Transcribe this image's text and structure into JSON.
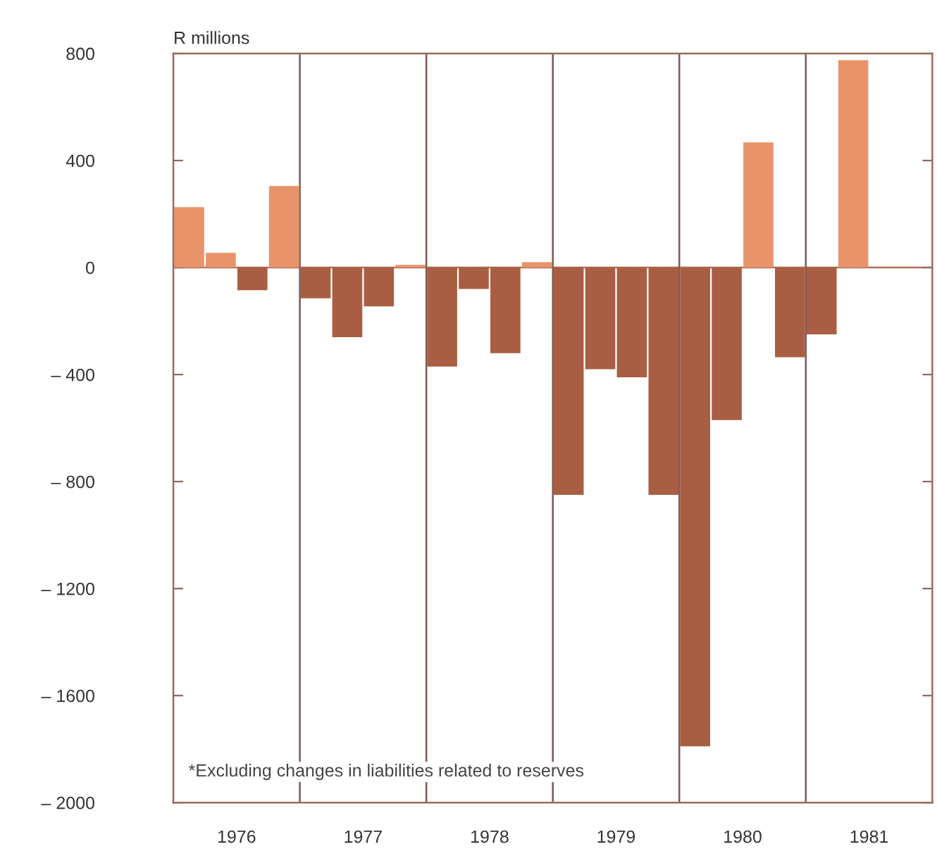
{
  "chart_data": {
    "type": "bar",
    "ylabel": "R millions",
    "x": [
      1976.125,
      1976.375,
      1976.625,
      1976.875,
      1977.125,
      1977.375,
      1977.625,
      1977.875,
      1978.125,
      1978.375,
      1978.625,
      1978.875,
      1979.125,
      1979.375,
      1979.625,
      1979.875,
      1980.125,
      1980.375,
      1980.625,
      1980.875,
      1981.125,
      1981.375
    ],
    "values": [
      226,
      55,
      -85,
      305,
      -115,
      -260,
      -145,
      10,
      -370,
      -80,
      -320,
      20,
      -850,
      -380,
      -410,
      -850,
      -1790,
      -570,
      468,
      -335,
      -250,
      775
    ],
    "colors": [
      "#e8936a",
      "#e8936a",
      "#a95e43",
      "#e8936a",
      "#a95e43",
      "#a95e43",
      "#a95e43",
      "#e8936a",
      "#a95e43",
      "#a95e43",
      "#a95e43",
      "#e8936a",
      "#a95e43",
      "#a95e43",
      "#a95e43",
      "#a95e43",
      "#a95e43",
      "#a95e43",
      "#e8936a",
      "#a95e43",
      "#a95e43",
      "#e8936a"
    ],
    "xlim": [
      1976,
      1982
    ],
    "xticks": [
      {
        "value": 1976.5,
        "label": "1976"
      },
      {
        "value": 1977.5,
        "label": "1977"
      },
      {
        "value": 1978.5,
        "label": "1978"
      },
      {
        "value": 1979.5,
        "label": "1979"
      },
      {
        "value": 1980.5,
        "label": "1980"
      },
      {
        "value": 1981.5,
        "label": "1981"
      }
    ],
    "ylim": [
      -2000,
      800
    ],
    "yticks": [
      800,
      400,
      0,
      {
        "value": -400,
        "label": "– 400"
      },
      {
        "value": -800,
        "label": "– 800"
      },
      {
        "value": -1200,
        "label": "– 1200"
      },
      {
        "value": -1600,
        "label": "– 1600"
      },
      {
        "value": -2000,
        "label": "– 2000"
      }
    ],
    "ref_lines": [
      {
        "axis": "y",
        "value": 0,
        "color": "#b0705a"
      },
      {
        "axis": "x",
        "value": 1977,
        "color": "#7a5a55"
      },
      {
        "axis": "x",
        "value": 1978,
        "color": "#7a5a55"
      },
      {
        "axis": "x",
        "value": 1979,
        "color": "#7a5a55"
      },
      {
        "axis": "x",
        "value": 1980,
        "color": "#7a5a55"
      },
      {
        "axis": "x",
        "value": 1981,
        "color": "#7a5a55"
      }
    ],
    "annotations": [
      "*Excluding changes in liabilities related to reserves"
    ],
    "grid": false,
    "legend": false
  }
}
